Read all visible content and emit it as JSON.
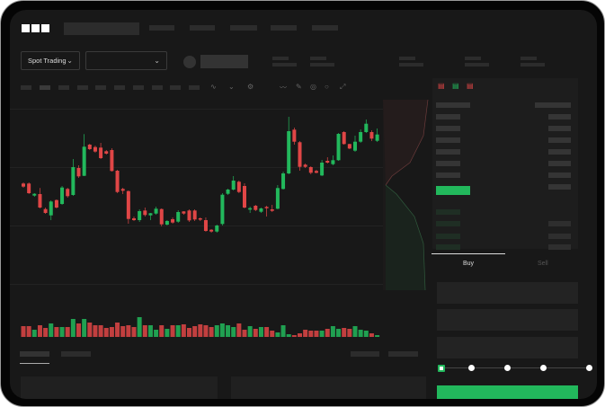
{
  "header": {
    "logo": "OKX"
  },
  "toolbar": {
    "market_type": "Spot Trading"
  },
  "order_form": {
    "tabs": [
      "Buy",
      "Sell"
    ],
    "active_tab": "Buy",
    "leverage_slider_value": 0
  },
  "colors": {
    "up": "#22b85c",
    "down": "#e04646",
    "background": "#181818"
  },
  "chart_data": {
    "type": "candlestick",
    "candles": [
      [
        116.7,
        118,
        112,
        113.3
      ],
      [
        116.7,
        118,
        105,
        106
      ],
      [
        103.3,
        106,
        102,
        105.3
      ],
      [
        105,
        111.7,
        89,
        90
      ],
      [
        88.3,
        90,
        83,
        84
      ],
      [
        81.3,
        98,
        76,
        96.7
      ],
      [
        98.3,
        99,
        89,
        90
      ],
      [
        94,
        114,
        93,
        112.3
      ],
      [
        110.7,
        112,
        101,
        102.7
      ],
      [
        104,
        144,
        103,
        135
      ],
      [
        134,
        137,
        123,
        124.7
      ],
      [
        125.3,
        171.7,
        125,
        157.7
      ],
      [
        160,
        161,
        154,
        155
      ],
      [
        157.3,
        159,
        151,
        152.3
      ],
      [
        156.7,
        162,
        144,
        145
      ],
      [
        152.7,
        154,
        149,
        150
      ],
      [
        154,
        156,
        130,
        130.7
      ],
      [
        131,
        132,
        106,
        107.3
      ],
      [
        110.7,
        112,
        105,
        108.7
      ],
      [
        108.3,
        109,
        72,
        77.3
      ],
      [
        78,
        80,
        75,
        76
      ],
      [
        76,
        88,
        74,
        86
      ],
      [
        86.7,
        90,
        80,
        81.7
      ],
      [
        81.3,
        84,
        76,
        83.7
      ],
      [
        83.3,
        91,
        82,
        88.7
      ],
      [
        88.3,
        89,
        69,
        71.3
      ],
      [
        71,
        76,
        70,
        75
      ],
      [
        77,
        79,
        72,
        73.3
      ],
      [
        74.3,
        87,
        73,
        85
      ],
      [
        85.7,
        86,
        82,
        83.3
      ],
      [
        86.7,
        88,
        74,
        75.7
      ],
      [
        86.7,
        88,
        75,
        76.7
      ],
      [
        78,
        79,
        75,
        76.7
      ],
      [
        76,
        79,
        63,
        64
      ],
      [
        65.3,
        66,
        62,
        63.3
      ],
      [
        63.3,
        71,
        62,
        70
      ],
      [
        71.7,
        106,
        70,
        104.3
      ],
      [
        105.3,
        111,
        104,
        110
      ],
      [
        110,
        125,
        109,
        120
      ],
      [
        118.7,
        120,
        106,
        107.3
      ],
      [
        114,
        117,
        89,
        90
      ],
      [
        87.7,
        91,
        84,
        89.3
      ],
      [
        92,
        93,
        86,
        87.3
      ],
      [
        85.3,
        90,
        84,
        89
      ],
      [
        90.7,
        92,
        80,
        89.3
      ],
      [
        88,
        93,
        85,
        86.3
      ],
      [
        88.7,
        115,
        88,
        111.7
      ],
      [
        110.7,
        130,
        110,
        128
      ],
      [
        128,
        191,
        127,
        175
      ],
      [
        176.7,
        179,
        160,
        163.3
      ],
      [
        162.7,
        164,
        131,
        135.3
      ],
      [
        137.7,
        139,
        134,
        135.3
      ],
      [
        135,
        136,
        127,
        128.7
      ],
      [
        130.7,
        132,
        128,
        128.7
      ],
      [
        125.7,
        143,
        125,
        140
      ],
      [
        142,
        146,
        139,
        140
      ],
      [
        138.3,
        148,
        137,
        142.7
      ],
      [
        142.7,
        173,
        142,
        172
      ],
      [
        174,
        175,
        160,
        160.7
      ],
      [
        160.7,
        161,
        155,
        155.7
      ],
      [
        153.3,
        170,
        152,
        163.3
      ],
      [
        163.3,
        177,
        162,
        174
      ],
      [
        174,
        188,
        173,
        183.3
      ],
      [
        174,
        176,
        164,
        166.7
      ],
      [
        164.3,
        178,
        163,
        171.3
      ]
    ],
    "volumes": [
      12,
      12,
      8,
      13,
      10,
      15,
      11,
      11,
      11,
      20,
      15,
      20,
      16,
      13,
      13,
      10,
      11,
      16,
      12,
      13,
      11,
      22,
      13,
      13,
      8,
      13,
      9,
      13,
      13,
      14,
      10,
      12,
      14,
      13,
      11,
      13,
      15,
      13,
      11,
      15,
      8,
      12,
      9,
      11,
      11,
      7,
      5,
      13,
      3,
      2,
      4,
      8,
      7,
      7,
      7,
      9,
      12,
      9,
      10,
      9,
      12,
      8,
      7,
      4,
      2
    ]
  }
}
